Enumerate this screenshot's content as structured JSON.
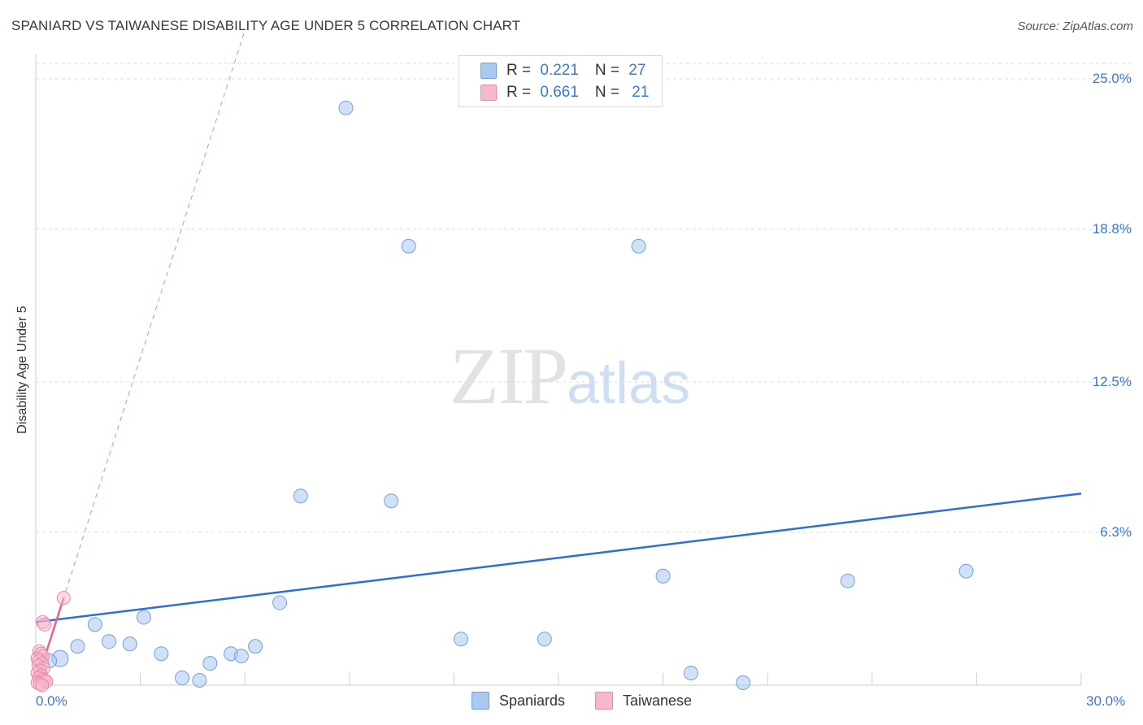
{
  "title": "SPANIARD VS TAIWANESE DISABILITY AGE UNDER 5 CORRELATION CHART",
  "source": "Source: ZipAtlas.com",
  "watermark": {
    "zip": "ZIP",
    "atlas": "atlas"
  },
  "legend": [
    {
      "r_label": "R = ",
      "r_value": "0.221",
      "n_label": "N = ",
      "n_value": "27",
      "color": "#a9c9f0"
    },
    {
      "r_label": "R = ",
      "r_value": "0.661",
      "n_label": "N = ",
      "n_value": "21",
      "color": "#f7b8cc"
    }
  ],
  "chart_data": {
    "type": "scatter",
    "title": "SPANIARD VS TAIWANESE DISABILITY AGE UNDER 5 CORRELATION CHART",
    "xlabel": "",
    "ylabel": "Disability Age Under 5",
    "xlim": [
      0,
      30
    ],
    "ylim": [
      0,
      25
    ],
    "x_tick_labels": [
      "0.0%",
      "30.0%"
    ],
    "y_ticks": [
      25.0,
      18.8,
      12.5,
      6.3
    ],
    "y_tick_labels": [
      "25.0%",
      "18.8%",
      "12.5%",
      "6.3%"
    ],
    "grid": true,
    "legend_position": "bottom",
    "series": [
      {
        "name": "Spaniards",
        "color": "#a9c9f0",
        "stroke": "#6fa0dc",
        "points": [
          [
            8.9,
            23.8
          ],
          [
            10.7,
            18.1
          ],
          [
            17.3,
            18.1
          ],
          [
            7.6,
            7.8
          ],
          [
            10.2,
            7.6
          ],
          [
            18.0,
            4.5
          ],
          [
            23.3,
            4.3
          ],
          [
            26.7,
            4.7
          ],
          [
            7.0,
            3.4
          ],
          [
            3.1,
            2.8
          ],
          [
            1.7,
            2.5
          ],
          [
            12.2,
            1.9
          ],
          [
            14.6,
            1.9
          ],
          [
            2.1,
            1.8
          ],
          [
            2.7,
            1.7
          ],
          [
            1.2,
            1.6
          ],
          [
            6.3,
            1.6
          ],
          [
            3.6,
            1.3
          ],
          [
            5.6,
            1.3
          ],
          [
            5.9,
            1.2
          ],
          [
            0.7,
            1.1
          ],
          [
            0.4,
            1.0
          ],
          [
            5.0,
            0.9
          ],
          [
            18.8,
            0.5
          ],
          [
            4.2,
            0.3
          ],
          [
            4.7,
            0.2
          ],
          [
            20.3,
            0.1
          ]
        ],
        "trend": {
          "x": [
            0,
            30
          ],
          "y": [
            2.6,
            7.9
          ]
        }
      },
      {
        "name": "Taiwanese",
        "color": "#f7b8cc",
        "stroke": "#e88aa8",
        "points": [
          [
            0.8,
            3.6
          ],
          [
            0.2,
            2.6
          ],
          [
            0.25,
            2.5
          ],
          [
            0.1,
            1.4
          ],
          [
            0.15,
            1.3
          ],
          [
            0.2,
            1.2
          ],
          [
            0.05,
            1.1
          ],
          [
            0.1,
            1.0
          ],
          [
            0.18,
            0.9
          ],
          [
            0.08,
            0.8
          ],
          [
            0.22,
            0.7
          ],
          [
            0.12,
            0.6
          ],
          [
            0.05,
            0.5
          ],
          [
            0.15,
            0.4
          ],
          [
            0.1,
            0.3
          ],
          [
            0.2,
            0.25
          ],
          [
            0.25,
            0.2
          ],
          [
            0.3,
            0.15
          ],
          [
            0.05,
            0.1
          ],
          [
            0.12,
            0.05
          ],
          [
            0.18,
            0.0
          ]
        ],
        "trend": {
          "x": [
            0,
            0.8
          ],
          "y": [
            0.0,
            3.6
          ]
        },
        "trend_extended": {
          "x": [
            0,
            6.0
          ],
          "y": [
            0.0,
            27.0
          ]
        }
      }
    ]
  },
  "bottom_legend": [
    {
      "label": "Spaniards",
      "color": "#a9c9f0"
    },
    {
      "label": "Taiwanese",
      "color": "#f7b8cc"
    }
  ]
}
